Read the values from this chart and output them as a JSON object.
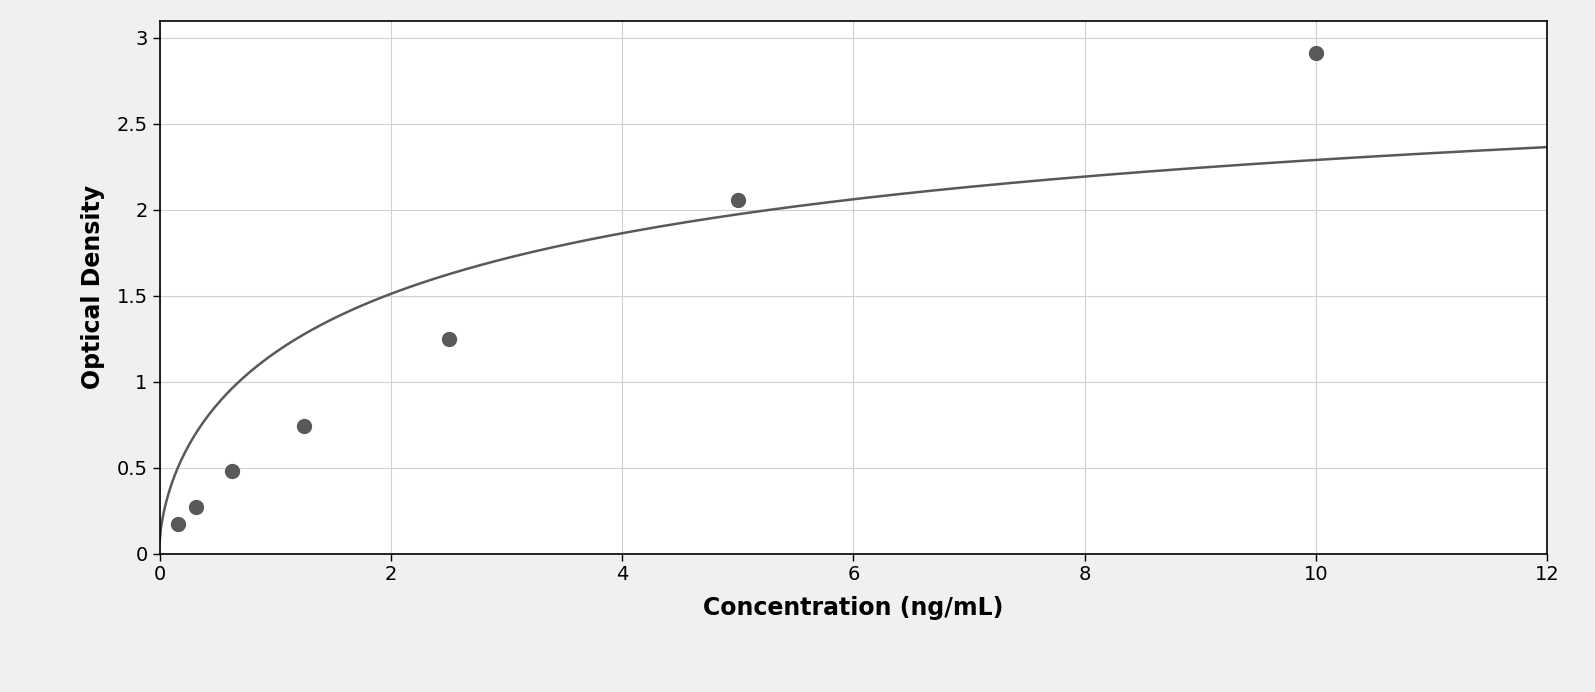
{
  "x_data": [
    0.156,
    0.313,
    0.625,
    1.25,
    2.5,
    5.0,
    10.0
  ],
  "y_data": [
    0.17,
    0.27,
    0.48,
    0.74,
    1.25,
    2.06,
    2.91
  ],
  "xlabel": "Concentration (ng/mL)",
  "ylabel": "Optical Density",
  "xlim": [
    0,
    12
  ],
  "ylim": [
    0,
    3.1
  ],
  "xticks": [
    0,
    2,
    4,
    6,
    8,
    10,
    12
  ],
  "yticks": [
    0,
    0.5,
    1.0,
    1.5,
    2.0,
    2.5,
    3.0
  ],
  "data_color": "#595959",
  "line_color": "#595959",
  "background_color": "#f0f0f0",
  "plot_bg_color": "#ffffff",
  "grid_color": "#d0d0d0",
  "marker_size": 10,
  "line_width": 1.8,
  "xlabel_fontsize": 17,
  "ylabel_fontsize": 17,
  "tick_fontsize": 14,
  "xlabel_fontweight": "bold",
  "ylabel_fontweight": "bold"
}
